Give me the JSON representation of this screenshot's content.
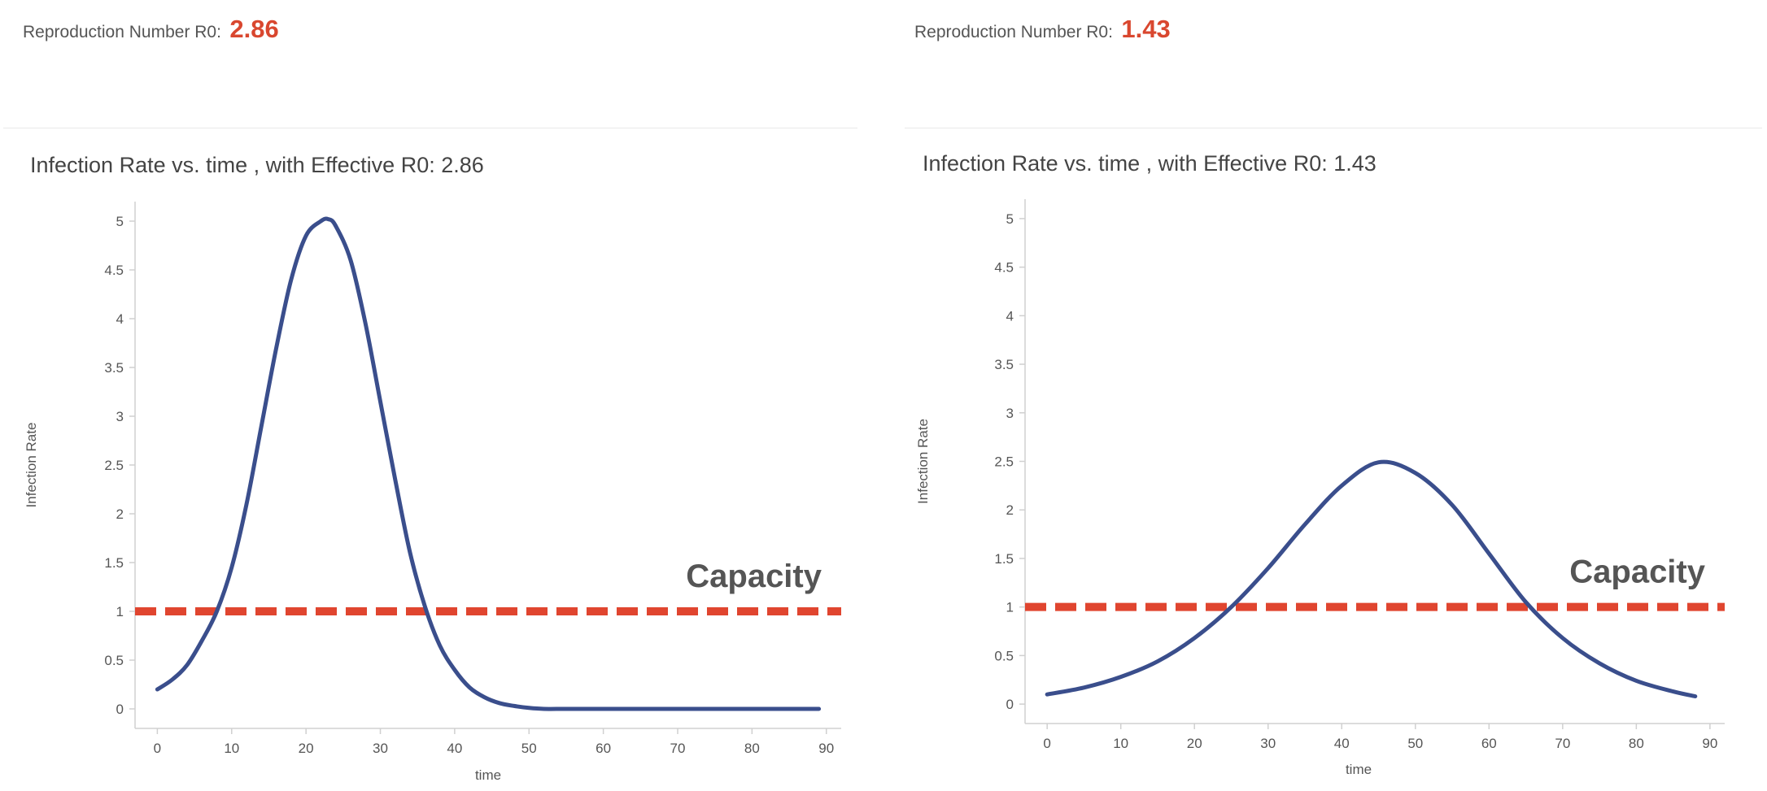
{
  "panels": [
    {
      "r0_label": "Reproduction Number R0:",
      "r0_value": "2.86",
      "title": "Infection Rate vs. time , with Effective R0: 2.86"
    },
    {
      "r0_label": "Reproduction Number R0:",
      "r0_value": "1.43",
      "title": "Infection Rate vs. time , with Effective R0: 1.43"
    }
  ],
  "colors": {
    "curve": "#3a4e8c",
    "capacity": "#e0452f",
    "accent_text": "#d9472f",
    "axis": "#d0d0d0"
  },
  "chart_data": [
    {
      "type": "line",
      "title": "Infection Rate vs. time , with Effective R0: 2.86",
      "xlabel": "time",
      "ylabel": "Infection Rate",
      "xlim": [
        -3,
        92
      ],
      "ylim": [
        -0.2,
        5.2
      ],
      "x_ticks": [
        0,
        10,
        20,
        30,
        40,
        50,
        60,
        70,
        80,
        90
      ],
      "y_ticks": [
        0,
        0.5,
        1,
        1.5,
        2,
        2.5,
        3,
        3.5,
        4,
        4.5,
        5
      ],
      "y_tick_labels": [
        "0",
        "0.5",
        "1",
        "1.5",
        "2",
        "2.5",
        "3",
        "3.5",
        "4",
        "4.5",
        "5"
      ],
      "series": [
        {
          "x": [
            0,
            2,
            4,
            6,
            8,
            10,
            12,
            14,
            16,
            18,
            20,
            22,
            23,
            24,
            26,
            28,
            30,
            32,
            34,
            36,
            38,
            40,
            42,
            44,
            46,
            48,
            50,
            52,
            55,
            60,
            70,
            80,
            89
          ],
          "y": [
            0.2,
            0.3,
            0.45,
            0.7,
            1.0,
            1.45,
            2.1,
            2.9,
            3.7,
            4.4,
            4.85,
            5.0,
            5.02,
            4.95,
            4.6,
            3.95,
            3.15,
            2.35,
            1.6,
            1.05,
            0.65,
            0.4,
            0.22,
            0.12,
            0.06,
            0.03,
            0.01,
            0.0,
            0.0,
            0.0,
            0.0,
            0.0,
            0.0
          ]
        }
      ],
      "capacity": {
        "value": 1,
        "label": "Capacity"
      }
    },
    {
      "type": "line",
      "title": "Infection Rate vs. time , with Effective R0: 1.43",
      "xlabel": "time",
      "ylabel": "Infection Rate",
      "xlim": [
        -3,
        92
      ],
      "ylim": [
        -0.2,
        5.2
      ],
      "x_ticks": [
        0,
        10,
        20,
        30,
        40,
        50,
        60,
        70,
        80,
        90
      ],
      "y_ticks": [
        0,
        0.5,
        1,
        1.5,
        2,
        2.5,
        3,
        3.5,
        4,
        4.5,
        5
      ],
      "y_tick_labels": [
        "0",
        "0.5",
        "1",
        "1.5",
        "2",
        "2.5",
        "3",
        "3.5",
        "4",
        "4.5",
        "5"
      ],
      "series": [
        {
          "x": [
            0,
            5,
            10,
            15,
            20,
            25,
            30,
            35,
            40,
            45,
            50,
            55,
            60,
            65,
            70,
            75,
            80,
            85,
            88
          ],
          "y": [
            0.1,
            0.17,
            0.28,
            0.44,
            0.68,
            1.0,
            1.4,
            1.85,
            2.25,
            2.49,
            2.38,
            2.05,
            1.55,
            1.05,
            0.68,
            0.42,
            0.24,
            0.13,
            0.08
          ]
        }
      ],
      "capacity": {
        "value": 1,
        "label": "Capacity"
      }
    }
  ]
}
